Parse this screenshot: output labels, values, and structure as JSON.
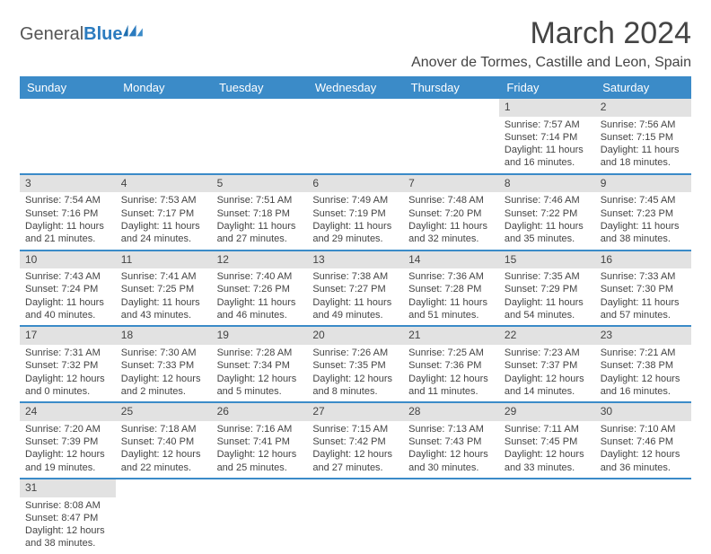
{
  "logo": {
    "text1": "General",
    "text2": "Blue"
  },
  "title": "March 2024",
  "location": "Anover de Tormes, Castille and Leon, Spain",
  "header_bg": "#3b8bc8",
  "daynum_bg": "#e2e2e2",
  "dayNames": [
    "Sunday",
    "Monday",
    "Tuesday",
    "Wednesday",
    "Thursday",
    "Friday",
    "Saturday"
  ],
  "weeks": [
    [
      null,
      null,
      null,
      null,
      null,
      {
        "n": "1",
        "sr": "7:57 AM",
        "ss": "7:14 PM",
        "dl": "11 hours and 16 minutes."
      },
      {
        "n": "2",
        "sr": "7:56 AM",
        "ss": "7:15 PM",
        "dl": "11 hours and 18 minutes."
      }
    ],
    [
      {
        "n": "3",
        "sr": "7:54 AM",
        "ss": "7:16 PM",
        "dl": "11 hours and 21 minutes."
      },
      {
        "n": "4",
        "sr": "7:53 AM",
        "ss": "7:17 PM",
        "dl": "11 hours and 24 minutes."
      },
      {
        "n": "5",
        "sr": "7:51 AM",
        "ss": "7:18 PM",
        "dl": "11 hours and 27 minutes."
      },
      {
        "n": "6",
        "sr": "7:49 AM",
        "ss": "7:19 PM",
        "dl": "11 hours and 29 minutes."
      },
      {
        "n": "7",
        "sr": "7:48 AM",
        "ss": "7:20 PM",
        "dl": "11 hours and 32 minutes."
      },
      {
        "n": "8",
        "sr": "7:46 AM",
        "ss": "7:22 PM",
        "dl": "11 hours and 35 minutes."
      },
      {
        "n": "9",
        "sr": "7:45 AM",
        "ss": "7:23 PM",
        "dl": "11 hours and 38 minutes."
      }
    ],
    [
      {
        "n": "10",
        "sr": "7:43 AM",
        "ss": "7:24 PM",
        "dl": "11 hours and 40 minutes."
      },
      {
        "n": "11",
        "sr": "7:41 AM",
        "ss": "7:25 PM",
        "dl": "11 hours and 43 minutes."
      },
      {
        "n": "12",
        "sr": "7:40 AM",
        "ss": "7:26 PM",
        "dl": "11 hours and 46 minutes."
      },
      {
        "n": "13",
        "sr": "7:38 AM",
        "ss": "7:27 PM",
        "dl": "11 hours and 49 minutes."
      },
      {
        "n": "14",
        "sr": "7:36 AM",
        "ss": "7:28 PM",
        "dl": "11 hours and 51 minutes."
      },
      {
        "n": "15",
        "sr": "7:35 AM",
        "ss": "7:29 PM",
        "dl": "11 hours and 54 minutes."
      },
      {
        "n": "16",
        "sr": "7:33 AM",
        "ss": "7:30 PM",
        "dl": "11 hours and 57 minutes."
      }
    ],
    [
      {
        "n": "17",
        "sr": "7:31 AM",
        "ss": "7:32 PM",
        "dl": "12 hours and 0 minutes."
      },
      {
        "n": "18",
        "sr": "7:30 AM",
        "ss": "7:33 PM",
        "dl": "12 hours and 2 minutes."
      },
      {
        "n": "19",
        "sr": "7:28 AM",
        "ss": "7:34 PM",
        "dl": "12 hours and 5 minutes."
      },
      {
        "n": "20",
        "sr": "7:26 AM",
        "ss": "7:35 PM",
        "dl": "12 hours and 8 minutes."
      },
      {
        "n": "21",
        "sr": "7:25 AM",
        "ss": "7:36 PM",
        "dl": "12 hours and 11 minutes."
      },
      {
        "n": "22",
        "sr": "7:23 AM",
        "ss": "7:37 PM",
        "dl": "12 hours and 14 minutes."
      },
      {
        "n": "23",
        "sr": "7:21 AM",
        "ss": "7:38 PM",
        "dl": "12 hours and 16 minutes."
      }
    ],
    [
      {
        "n": "24",
        "sr": "7:20 AM",
        "ss": "7:39 PM",
        "dl": "12 hours and 19 minutes."
      },
      {
        "n": "25",
        "sr": "7:18 AM",
        "ss": "7:40 PM",
        "dl": "12 hours and 22 minutes."
      },
      {
        "n": "26",
        "sr": "7:16 AM",
        "ss": "7:41 PM",
        "dl": "12 hours and 25 minutes."
      },
      {
        "n": "27",
        "sr": "7:15 AM",
        "ss": "7:42 PM",
        "dl": "12 hours and 27 minutes."
      },
      {
        "n": "28",
        "sr": "7:13 AM",
        "ss": "7:43 PM",
        "dl": "12 hours and 30 minutes."
      },
      {
        "n": "29",
        "sr": "7:11 AM",
        "ss": "7:45 PM",
        "dl": "12 hours and 33 minutes."
      },
      {
        "n": "30",
        "sr": "7:10 AM",
        "ss": "7:46 PM",
        "dl": "12 hours and 36 minutes."
      }
    ],
    [
      {
        "n": "31",
        "sr": "8:08 AM",
        "ss": "8:47 PM",
        "dl": "12 hours and 38 minutes."
      },
      null,
      null,
      null,
      null,
      null,
      null
    ]
  ],
  "labels": {
    "sunrise": "Sunrise: ",
    "sunset": "Sunset: ",
    "daylight": "Daylight: "
  }
}
